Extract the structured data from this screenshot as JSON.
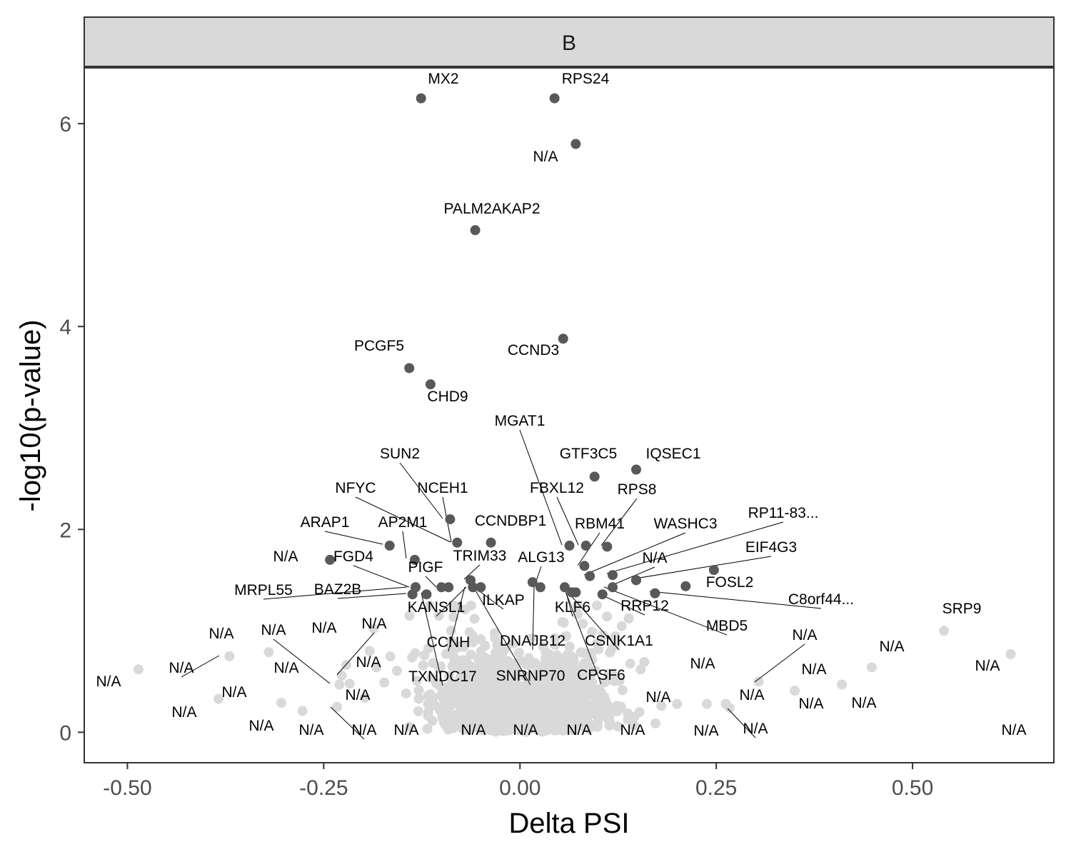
{
  "chart_data": {
    "type": "scatter",
    "facet_label": "B",
    "xlabel": "Delta PSI",
    "ylabel": "-log10(p-value)",
    "xlim": [
      -0.555,
      0.68
    ],
    "ylim": [
      -0.3,
      6.55
    ],
    "x_ticks": [
      -0.5,
      -0.25,
      0.0,
      0.25,
      0.5
    ],
    "x_tick_labels": [
      "-0.50",
      "-0.25",
      "0.00",
      "0.25",
      "0.50"
    ],
    "y_ticks": [
      0,
      2,
      4,
      6
    ],
    "y_tick_labels": [
      "0",
      "2",
      "4",
      "6"
    ],
    "grid": false,
    "colors": {
      "significant": "#595959",
      "background": "#d9d9d9",
      "strip_fill": "#d9d9d9",
      "panel_border": "#333333",
      "leader_line": "#000000"
    },
    "series": [
      {
        "points": [
          {
            "x": -0.126,
            "y": 6.25,
            "label": "MX2"
          },
          {
            "x": 0.044,
            "y": 6.25,
            "label": "RPS24"
          },
          {
            "x": 0.071,
            "y": 5.8,
            "label": "N/A"
          },
          {
            "x": -0.057,
            "y": 4.95,
            "label": "PALM2AKAP2"
          },
          {
            "x": 0.055,
            "y": 3.88,
            "label": "CCND3"
          },
          {
            "x": -0.141,
            "y": 3.59,
            "label": "PCGF5"
          },
          {
            "x": -0.114,
            "y": 3.43,
            "label": "CHD9"
          },
          {
            "x": 0.095,
            "y": 2.52,
            "label": "GTF3C5"
          },
          {
            "x": 0.148,
            "y": 2.59,
            "label": "IQSEC1"
          },
          {
            "x": -0.089,
            "y": 2.1,
            "label": "NCEH1"
          },
          {
            "x": -0.08,
            "y": 1.87,
            "label": "NFYC"
          },
          {
            "x": -0.166,
            "y": 1.84,
            "label": "ARAP1"
          },
          {
            "x": -0.037,
            "y": 1.87,
            "label": "CCNDBP1"
          },
          {
            "x": 0.063,
            "y": 1.84,
            "label": "MGAT1"
          },
          {
            "x": 0.084,
            "y": 1.84,
            "label": "FBXL12"
          },
          {
            "x": 0.111,
            "y": 1.83,
            "label": "RPS8"
          },
          {
            "x": -0.134,
            "y": 1.7,
            "label": "AP2M1"
          },
          {
            "x": -0.242,
            "y": 1.7,
            "label": "N/A"
          },
          {
            "x": 0.082,
            "y": 1.64,
            "label": "RBM41"
          },
          {
            "x": 0.089,
            "y": 1.54,
            "label": "WASHC3"
          },
          {
            "x": 0.118,
            "y": 1.55,
            "label": "N/A"
          },
          {
            "x": 0.148,
            "y": 1.5,
            "label": "RP11-83..."
          },
          {
            "x": 0.247,
            "y": 1.6,
            "label": "FGD4"
          },
          {
            "x": -0.063,
            "y": 1.5,
            "label": "TRIM33"
          },
          {
            "x": 0.016,
            "y": 1.48,
            "label": "ALG13"
          },
          {
            "x": -0.133,
            "y": 1.43,
            "label": "PIGF"
          },
          {
            "x": -0.133,
            "y": 1.43,
            "label": "BAZ2B"
          },
          {
            "x": -0.137,
            "y": 1.36,
            "label": "FOSL2"
          },
          {
            "x": -0.119,
            "y": 1.36,
            "label": "MRPL55"
          },
          {
            "x": 0.211,
            "y": 1.44,
            "label": "C8orf44..."
          },
          {
            "x": 0.172,
            "y": 1.37,
            "label": "KANSL1"
          },
          {
            "x": 0.118,
            "y": 1.43,
            "label": "MBD5"
          },
          {
            "x": 0.105,
            "y": 1.36,
            "label": "DNAJB12"
          },
          {
            "x": -0.06,
            "y": 1.43,
            "label": "CSNK1A1"
          },
          {
            "x": -0.05,
            "y": 1.43,
            "label": "KLF6"
          },
          {
            "x": 0.026,
            "y": 1.43,
            "label": "CCNH"
          },
          {
            "x": -0.091,
            "y": 1.43,
            "label": "SNRNP70"
          },
          {
            "x": 0.066,
            "y": 1.38,
            "label": "RRP12"
          },
          {
            "x": 0.071,
            "y": 1.38,
            "label": "TXNDC17"
          },
          {
            "x": -0.05,
            "y": 1.43,
            "label": "CPSF6"
          },
          {
            "x": 0.057,
            "y": 1.43,
            "label": "SRP9"
          },
          {
            "x": -0.1,
            "y": 1.43,
            "label": "ILKAP"
          },
          {
            "x": 0.148,
            "y": 1.5,
            "label": "EIF4G3"
          },
          {
            "x": -0.486,
            "y": 0.62,
            "label": "N/A"
          },
          {
            "x": -0.37,
            "y": 0.75,
            "label": "N/A"
          },
          {
            "x": -0.384,
            "y": 0.33,
            "label": "N/A"
          },
          {
            "x": -0.32,
            "y": 0.79,
            "label": "N/A"
          },
          {
            "x": -0.304,
            "y": 0.29,
            "label": "N/A"
          },
          {
            "x": -0.233,
            "y": 0.25,
            "label": "N/A"
          },
          {
            "x": -0.23,
            "y": 0.47,
            "label": "N/A"
          },
          {
            "x": -0.227,
            "y": 0.56,
            "label": "N/A"
          },
          {
            "x": -0.217,
            "y": 0.48,
            "label": "N/A"
          },
          {
            "x": -0.198,
            "y": 0.34,
            "label": "N/A"
          },
          {
            "x": -0.277,
            "y": 0.21,
            "label": "N/A"
          },
          {
            "x": 0.54,
            "y": 1.0,
            "label": "N/A"
          },
          {
            "x": 0.625,
            "y": 0.77,
            "label": "N/A"
          },
          {
            "x": 0.448,
            "y": 0.64,
            "label": "N/A"
          },
          {
            "x": 0.41,
            "y": 0.47,
            "label": "N/A"
          },
          {
            "x": 0.35,
            "y": 0.41,
            "label": "N/A"
          },
          {
            "x": 0.304,
            "y": 0.5,
            "label": "N/A"
          },
          {
            "x": 0.267,
            "y": 0.24,
            "label": "N/A"
          },
          {
            "x": 0.238,
            "y": 0.28,
            "label": "N/A"
          },
          {
            "x": 0.2,
            "y": 0.28,
            "label": "N/A"
          },
          {
            "x": 0.262,
            "y": 0.28,
            "label": "N/A"
          }
        ]
      }
    ],
    "labels": [
      "MX2",
      "RPS24",
      "N/A",
      "PALM2AKAP2",
      "CCND3",
      "PCGF5",
      "CHD9",
      "MGAT1",
      "GTF3C5",
      "IQSEC1",
      "SUN2",
      "NFYC",
      "NCEH1",
      "FBXL12",
      "RPS8",
      "ARAP1",
      "AP2M1",
      "CCNDBP1",
      "RBM41",
      "WASHC3",
      "RP11-83...",
      "N/A",
      "EIF4G3",
      "TRIM33",
      "ALG13",
      "N/A",
      "FGD4",
      "PIGF",
      "MRPL55",
      "BAZ2B",
      "FOSL2",
      "C8orf44...",
      "KANSL1",
      "ILKAP",
      "KLF6",
      "RRP12",
      "MBD5",
      "DNAJB12",
      "CCNH",
      "CSNK1A1",
      "TXNDC17",
      "SNRNP70",
      "CPSF6",
      "SRP9",
      "N/A",
      "N/A",
      "N/A",
      "N/A",
      "N/A",
      "N/A",
      "N/A",
      "N/A",
      "N/A",
      "N/A",
      "N/A",
      "N/A",
      "N/A",
      "N/A",
      "N/A",
      "N/A",
      "N/A",
      "N/A",
      "N/A",
      "N/A",
      "N/A",
      "N/A",
      "N/A",
      "N/A",
      "N/A",
      "N/A",
      "N/A",
      "N/A",
      "N/A",
      "N/A",
      "N/A"
    ]
  }
}
